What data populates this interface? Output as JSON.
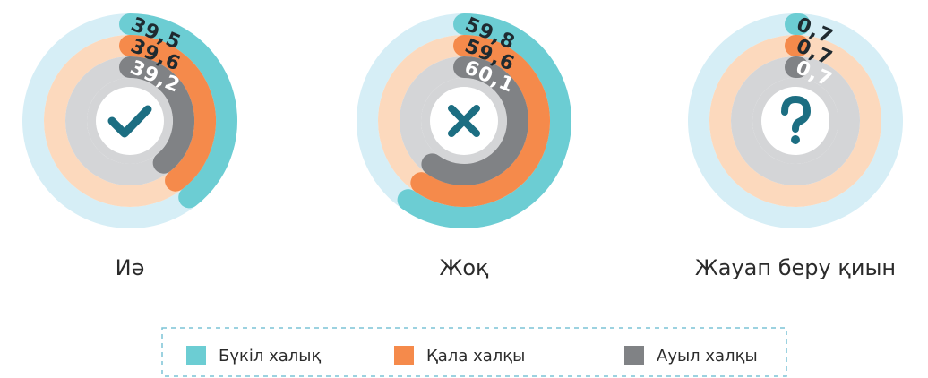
{
  "chart_data": {
    "type": "radial_bar",
    "categories": [
      "Иә",
      "Жоқ",
      "Жауап беру қиын"
    ],
    "ylim": [
      0,
      100
    ],
    "track_colors": [
      "#d6eef6",
      "#fcd9bd",
      "#d4d5d7"
    ],
    "series": [
      {
        "name": "Бүкіл халық",
        "color": "#6ccdd3",
        "values": [
          39.5,
          59.8,
          0.7
        ],
        "value_labels": [
          "39,5",
          "59,8",
          "0,7"
        ],
        "label_color": "#1f2a30"
      },
      {
        "name": "Қала халқы",
        "color": "#f58a4b",
        "values": [
          39.6,
          59.6,
          0.7
        ],
        "value_labels": [
          "39,6",
          "59,6",
          "0,7"
        ],
        "label_color": "#1f2a30"
      },
      {
        "name": "Ауыл халқы",
        "color": "#808285",
        "values": [
          39.2,
          60.1,
          0.7
        ],
        "value_labels": [
          "39,2",
          "60,1",
          "0,7"
        ],
        "label_color": "#ffffff"
      }
    ]
  }
}
